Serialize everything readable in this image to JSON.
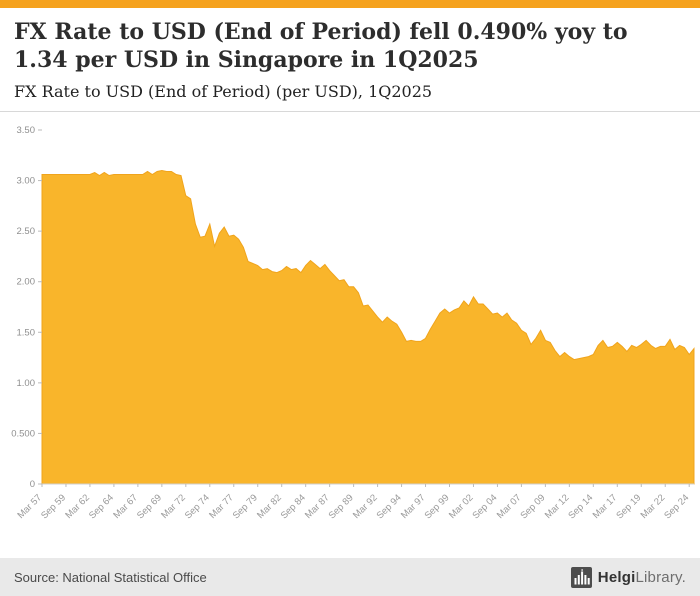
{
  "header": {
    "title": "FX Rate to USD (End of Period) fell 0.490% yoy to 1.34 per USD in Singapore in 1Q2025",
    "subtitle": "FX Rate to USD (End of Period) (per USD), 1Q2025"
  },
  "footer": {
    "source": "Source: National Statistical Office",
    "brand_bold": "Helgi",
    "brand_light": "Library."
  },
  "colors": {
    "accent_topbar": "#F5A21E",
    "area_fill": "#F9B52B",
    "area_line": "#F0A41C",
    "footer_bg": "#E9E9E9"
  },
  "chart_data": {
    "type": "area",
    "title": "FX Rate to USD (End of Period) (per USD), 1Q2025",
    "xlabel": "",
    "ylabel": "",
    "ylim": [
      0,
      3.5
    ],
    "grid": false,
    "legend": false,
    "x_tick_every": 5,
    "y_ticks": [
      {
        "v": 3.5,
        "label": "3.50"
      },
      {
        "v": 3.0,
        "label": "3.00"
      },
      {
        "v": 2.5,
        "label": "2.50"
      },
      {
        "v": 2.0,
        "label": "2.00"
      },
      {
        "v": 1.5,
        "label": "1.50"
      },
      {
        "v": 1.0,
        "label": "1.00"
      },
      {
        "v": 0.5,
        "label": "0.500"
      },
      {
        "v": 0.0,
        "label": "0"
      }
    ],
    "categories": [
      "Mar 57",
      "Sep 57",
      "Mar 58",
      "Sep 58",
      "Mar 59",
      "Sep 59",
      "Mar 60",
      "Sep 60",
      "Mar 61",
      "Sep 61",
      "Mar 62",
      "Sep 62",
      "Mar 63",
      "Sep 63",
      "Mar 64",
      "Sep 64",
      "Mar 65",
      "Sep 65",
      "Mar 66",
      "Sep 66",
      "Mar 67",
      "Sep 67",
      "Mar 68",
      "Sep 68",
      "Mar 69",
      "Sep 69",
      "Mar 70",
      "Sep 70",
      "Mar 71",
      "Sep 71",
      "Mar 72",
      "Sep 72",
      "Mar 73",
      "Sep 73",
      "Mar 74",
      "Sep 74",
      "Mar 75",
      "Sep 75",
      "Mar 76",
      "Sep 76",
      "Mar 77",
      "Sep 77",
      "Mar 78",
      "Sep 78",
      "Mar 79",
      "Sep 79",
      "Mar 80",
      "Sep 80",
      "Mar 81",
      "Sep 81",
      "Mar 82",
      "Sep 82",
      "Mar 83",
      "Sep 83",
      "Mar 84",
      "Sep 84",
      "Mar 85",
      "Sep 85",
      "Mar 86",
      "Sep 86",
      "Mar 87",
      "Sep 87",
      "Mar 88",
      "Sep 88",
      "Mar 89",
      "Sep 89",
      "Mar 90",
      "Sep 90",
      "Mar 91",
      "Sep 91",
      "Mar 92",
      "Sep 92",
      "Mar 93",
      "Sep 93",
      "Mar 94",
      "Sep 94",
      "Mar 95",
      "Sep 95",
      "Mar 96",
      "Sep 96",
      "Mar 97",
      "Sep 97",
      "Mar 98",
      "Sep 98",
      "Mar 99",
      "Sep 99",
      "Mar 00",
      "Sep 00",
      "Mar 01",
      "Sep 01",
      "Mar 02",
      "Sep 02",
      "Mar 03",
      "Sep 03",
      "Mar 04",
      "Sep 04",
      "Mar 05",
      "Sep 05",
      "Mar 06",
      "Sep 06",
      "Mar 07",
      "Sep 07",
      "Mar 08",
      "Sep 08",
      "Mar 09",
      "Sep 09",
      "Mar 10",
      "Sep 10",
      "Mar 11",
      "Sep 11",
      "Mar 12",
      "Sep 12",
      "Mar 13",
      "Sep 13",
      "Mar 14",
      "Sep 14",
      "Mar 15",
      "Sep 15",
      "Mar 16",
      "Sep 16",
      "Mar 17",
      "Sep 17",
      "Mar 18",
      "Sep 18",
      "Mar 19",
      "Sep 19",
      "Mar 20",
      "Sep 20",
      "Mar 21",
      "Sep 21",
      "Mar 22",
      "Sep 22",
      "Mar 23",
      "Sep 23",
      "Mar 24",
      "Sep 24",
      "Mar 25"
    ],
    "values": [
      3.06,
      3.06,
      3.06,
      3.06,
      3.06,
      3.06,
      3.06,
      3.06,
      3.06,
      3.06,
      3.06,
      3.08,
      3.05,
      3.08,
      3.05,
      3.06,
      3.06,
      3.06,
      3.06,
      3.06,
      3.06,
      3.06,
      3.09,
      3.06,
      3.09,
      3.1,
      3.09,
      3.09,
      3.06,
      3.05,
      2.85,
      2.82,
      2.57,
      2.44,
      2.45,
      2.57,
      2.35,
      2.48,
      2.54,
      2.45,
      2.46,
      2.42,
      2.34,
      2.2,
      2.18,
      2.16,
      2.12,
      2.13,
      2.1,
      2.09,
      2.11,
      2.15,
      2.12,
      2.13,
      2.09,
      2.16,
      2.21,
      2.17,
      2.13,
      2.17,
      2.11,
      2.06,
      2.01,
      2.02,
      1.95,
      1.95,
      1.89,
      1.76,
      1.77,
      1.71,
      1.65,
      1.6,
      1.65,
      1.61,
      1.58,
      1.5,
      1.41,
      1.42,
      1.41,
      1.41,
      1.44,
      1.53,
      1.61,
      1.69,
      1.73,
      1.69,
      1.72,
      1.74,
      1.81,
      1.76,
      1.85,
      1.78,
      1.78,
      1.73,
      1.68,
      1.69,
      1.65,
      1.69,
      1.62,
      1.59,
      1.52,
      1.49,
      1.38,
      1.44,
      1.52,
      1.42,
      1.4,
      1.32,
      1.26,
      1.3,
      1.26,
      1.23,
      1.24,
      1.25,
      1.26,
      1.28,
      1.37,
      1.42,
      1.35,
      1.36,
      1.4,
      1.36,
      1.31,
      1.37,
      1.35,
      1.38,
      1.42,
      1.37,
      1.34,
      1.36,
      1.36,
      1.43,
      1.33,
      1.37,
      1.35,
      1.28,
      1.34
    ],
    "last_value_label": "1.34"
  }
}
